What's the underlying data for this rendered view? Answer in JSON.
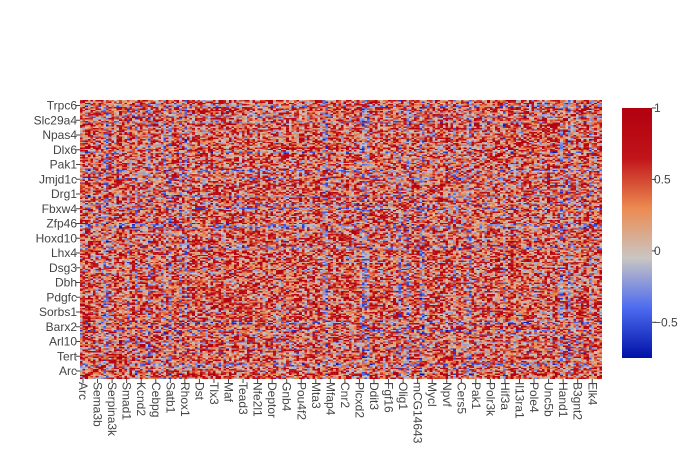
{
  "chart_data": {
    "type": "heatmap",
    "title": "",
    "xlabel": "",
    "ylabel": "",
    "y_tick_labels": [
      "Arc",
      "Tert",
      "Arl10",
      "Barx2",
      "Sorbs1",
      "Pdgfc",
      "Dbh",
      "Dsg3",
      "Lhx4",
      "Hoxd10",
      "Zfp46",
      "Fbxw4",
      "Drg1",
      "Jmjd1c",
      "Pak1",
      "Dlx6",
      "Npas4",
      "Slc29a4",
      "Trpc6"
    ],
    "x_tick_labels": [
      "Arc",
      "Sema3b",
      "Serpina3k",
      "Smad1",
      "Kcnd2",
      "Cebpg",
      "Satb1",
      "Rhox1",
      "Dst",
      "Tlx3",
      "Maf",
      "Tead3",
      "Nfe2l1",
      "Deptor",
      "Gnb4",
      "Pou4f2",
      "Mta3",
      "Mfap4",
      "Cnr2",
      "Plcxd2",
      "Ddit3",
      "Fgf16",
      "Olig1",
      "mCG14643",
      "Mycl",
      "Npvf",
      "Cers5",
      "Pak1",
      "Polr3k",
      "Hif3a",
      "Il13ra1",
      "Pole4",
      "Unc5b",
      "Hand1",
      "B3gnt2",
      "Elk4"
    ],
    "matrix_size": 200,
    "zmin": -0.75,
    "zmax": 1,
    "colorscale": [
      "#0011a7",
      "#4d6bf0",
      "#c9c6c3",
      "#ec8a50",
      "#c0141a",
      "#b2000f"
    ],
    "colorbar_ticks": [
      "1",
      "0.5",
      "0",
      "−0.5"
    ],
    "colorbar_tick_values": [
      1,
      0.5,
      0,
      -0.5
    ],
    "values_note_mean": 0.25,
    "diagonal_value": 1,
    "grid": false
  }
}
